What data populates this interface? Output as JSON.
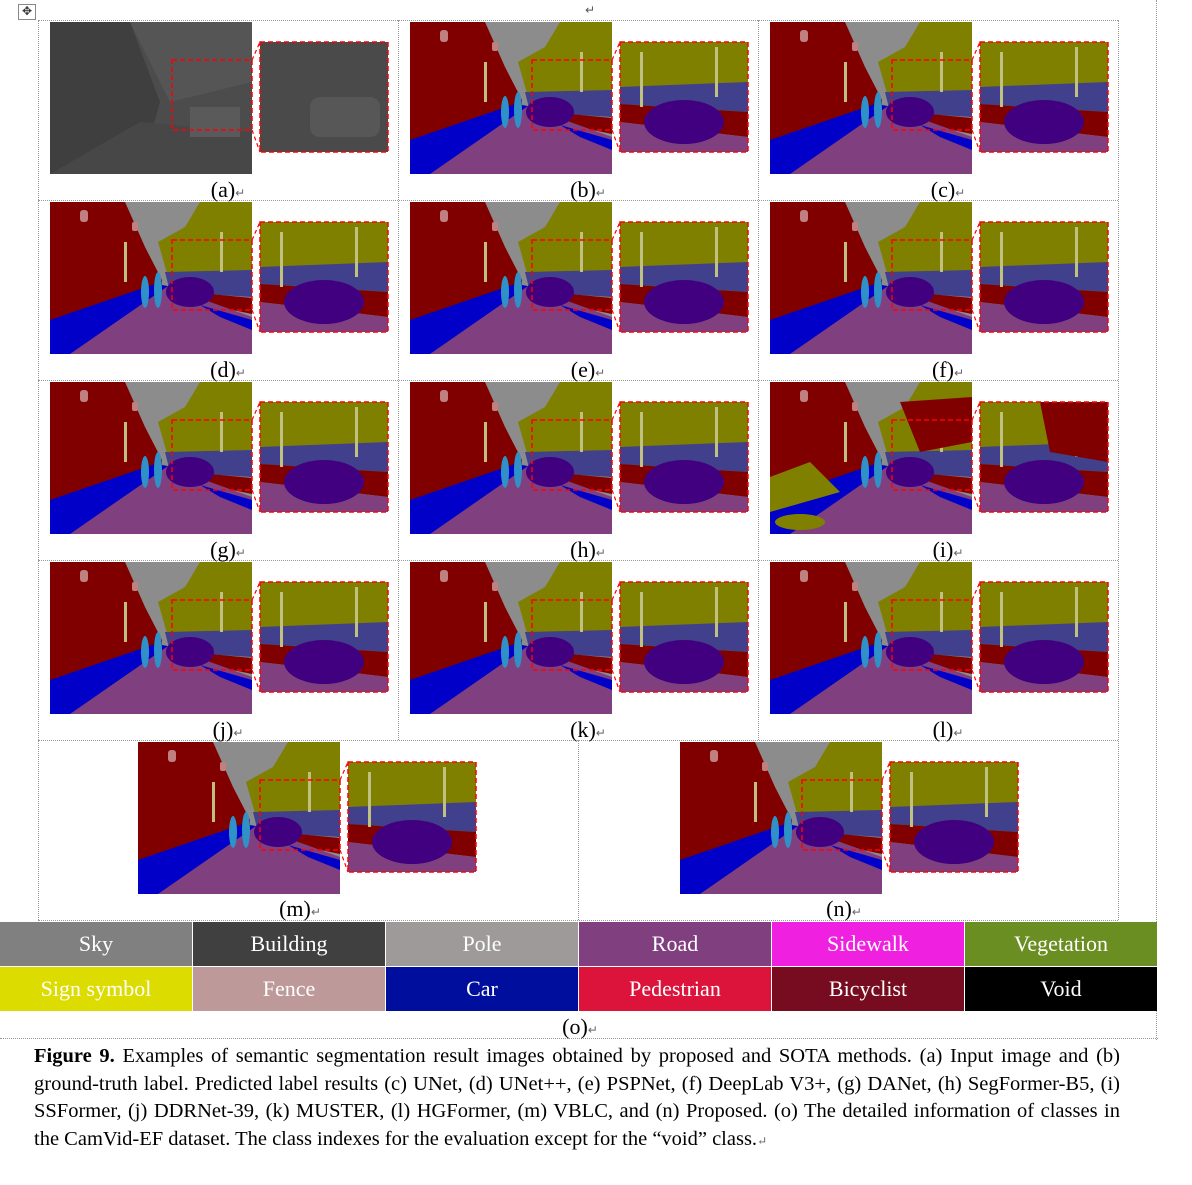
{
  "figure": {
    "panels": [
      {
        "id": "a",
        "label": "(a)",
        "kind": "input"
      },
      {
        "id": "b",
        "label": "(b)",
        "kind": "gt"
      },
      {
        "id": "c",
        "label": "(c)",
        "kind": "pred"
      },
      {
        "id": "d",
        "label": "(d)",
        "kind": "pred"
      },
      {
        "id": "e",
        "label": "(e)",
        "kind": "pred"
      },
      {
        "id": "f",
        "label": "(f)",
        "kind": "pred"
      },
      {
        "id": "g",
        "label": "(g)",
        "kind": "pred"
      },
      {
        "id": "h",
        "label": "(h)",
        "kind": "pred"
      },
      {
        "id": "i",
        "label": "(i)",
        "kind": "noisy"
      },
      {
        "id": "j",
        "label": "(j)",
        "kind": "pred"
      },
      {
        "id": "k",
        "label": "(k)",
        "kind": "pred"
      },
      {
        "id": "l",
        "label": "(l)",
        "kind": "pred"
      },
      {
        "id": "m",
        "label": "(m)",
        "kind": "pred"
      },
      {
        "id": "n",
        "label": "(n)",
        "kind": "pred"
      }
    ],
    "legend": {
      "label": "(o)",
      "classes": [
        {
          "name": "Sky",
          "color": "#808080",
          "text_color": "#ffffff"
        },
        {
          "name": "Building",
          "color": "#404040",
          "text_color": "#ffffff"
        },
        {
          "name": "Pole",
          "color": "#9e9a9a",
          "text_color": "#ffffff"
        },
        {
          "name": "Road",
          "color": "#80407f",
          "text_color": "#ffffff"
        },
        {
          "name": "Sidewalk",
          "color": "#f020e0",
          "text_color": "#ffffff"
        },
        {
          "name": "Vegetation",
          "color": "#6b8e23",
          "text_color": "#ffffff"
        },
        {
          "name": "Sign symbol",
          "color": "#dcdc00",
          "text_color": "#ffffff"
        },
        {
          "name": "Fence",
          "color": "#be9999",
          "text_color": "#ffffff"
        },
        {
          "name": "Car",
          "color": "#000e9e",
          "text_color": "#ffffff"
        },
        {
          "name": "Pedestrian",
          "color": "#dc143c",
          "text_color": "#ffffff"
        },
        {
          "name": "Bicyclist",
          "color": "#770b20",
          "text_color": "#ffffff"
        },
        {
          "name": "Void",
          "color": "#000000",
          "text_color": "#ffffff"
        }
      ]
    },
    "caption": {
      "prefix": "Figure 9.",
      "text": " Examples of semantic segmentation result images obtained by proposed and SOTA methods. (a) Input image and (b) ground-truth label. Predicted label results (c) UNet, (d) UNet++, (e) PSPNet, (f) DeepLab V3+, (g) DANet, (h) SegFormer-B5, (i) SSFormer, (j) DDRNet-39, (k) MUSTER, (l) HGFormer, (m) VBLC, and (n) Proposed. (o) The detailed information of classes in the CamVid-EF dataset. The class indexes for the evaluation except for the “void” class."
    },
    "marks": {
      "handle": "✥",
      "return": "↵"
    },
    "scene_colors": {
      "sky": "#8c8c8c",
      "building": "#800000",
      "vegetation": "#808000",
      "car": "#40007f",
      "sidewalk": "#0000c8",
      "road": "#80407f",
      "wall": "#40408c",
      "pole": "#c0c080",
      "pedestrian": "#3090c8",
      "fence": "#c08080",
      "zoom_border": "#ff0000"
    }
  }
}
